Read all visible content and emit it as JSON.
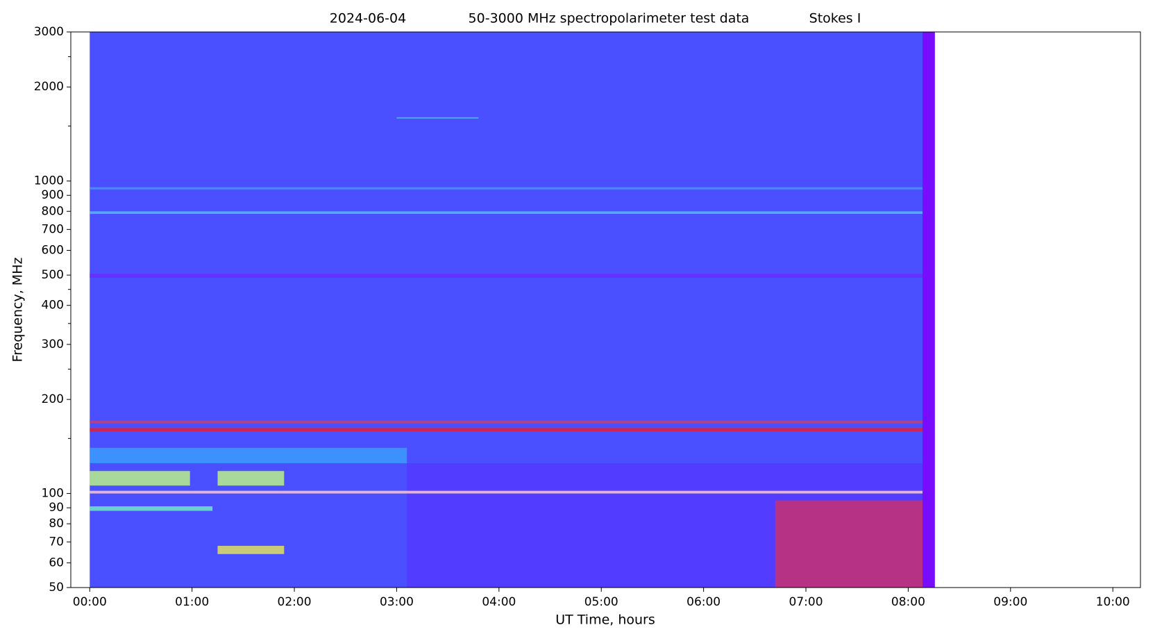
{
  "chart_data": {
    "type": "spectrogram",
    "title": [
      "2024-06-04",
      "50-3000 MHz spectropolarimeter test data",
      "Stokes I"
    ],
    "xlabel": "UT Time, hours",
    "ylabel": "Frequency, MHz",
    "xlim": [
      -0.185,
      10.27
    ],
    "ylim": [
      50,
      3000
    ],
    "ylog": true,
    "xticks": [
      {
        "value": 0,
        "label": "00:00"
      },
      {
        "value": 1,
        "label": "01:00"
      },
      {
        "value": 2,
        "label": "02:00"
      },
      {
        "value": 3,
        "label": "03:00"
      },
      {
        "value": 4,
        "label": "04:00"
      },
      {
        "value": 5,
        "label": "05:00"
      },
      {
        "value": 6,
        "label": "06:00"
      },
      {
        "value": 7,
        "label": "07:00"
      },
      {
        "value": 8,
        "label": "08:00"
      },
      {
        "value": 9,
        "label": "09:00"
      },
      {
        "value": 10,
        "label": "10:00"
      }
    ],
    "yticks": [
      50,
      60,
      70,
      80,
      90,
      100,
      200,
      300,
      400,
      500,
      600,
      700,
      800,
      900,
      1000,
      2000,
      3000
    ],
    "yminor": [
      150,
      250,
      350,
      450,
      1500,
      2500
    ],
    "data_x": [
      0,
      8.26
    ],
    "color": "#4a50ff",
    "bands": [
      {
        "x": [
          8.14,
          8.26
        ],
        "y": [
          50,
          3000
        ],
        "color": "#8000ff"
      },
      {
        "x": [
          3.1,
          8.14
        ],
        "y": [
          50,
          125
        ],
        "color": "#5238ff"
      },
      {
        "x": [
          0,
          3.1
        ],
        "y": [
          125,
          140
        ],
        "color": "#3a9cff"
      },
      {
        "x": [
          0,
          0.98
        ],
        "y": [
          106,
          118
        ],
        "color": "#b8f088"
      },
      {
        "x": [
          1.25,
          1.9
        ],
        "y": [
          106,
          118
        ],
        "color": "#b8f088"
      },
      {
        "x": [
          0,
          8.14
        ],
        "y": [
          100,
          102
        ],
        "color": "#ffc8c8"
      },
      {
        "x": [
          0,
          1.2
        ],
        "y": [
          88,
          91
        ],
        "color": "#70e8c8"
      },
      {
        "x": [
          0,
          8.14
        ],
        "y": [
          158,
          162
        ],
        "color": "#e0203c"
      },
      {
        "x": [
          0,
          8.14
        ],
        "y": [
          168,
          171
        ],
        "color": "#c0407a"
      },
      {
        "x": [
          0,
          8.14
        ],
        "y": [
          490,
          505
        ],
        "color": "#6a2cff"
      },
      {
        "x": [
          0,
          8.14
        ],
        "y": [
          785,
          800
        ],
        "color": "#58b8ff"
      },
      {
        "x": [
          0,
          8.14
        ],
        "y": [
          940,
          955
        ],
        "color": "#5090ff"
      },
      {
        "x": [
          3.0,
          3.8
        ],
        "y": [
          1585,
          1600
        ],
        "color": "#40c8f0"
      },
      {
        "x": [
          6.7,
          8.14
        ],
        "y": [
          50,
          95
        ],
        "color": "#c83070"
      },
      {
        "x": [
          1.25,
          1.9
        ],
        "y": [
          64,
          68
        ],
        "color": "#e0e060"
      }
    ]
  }
}
